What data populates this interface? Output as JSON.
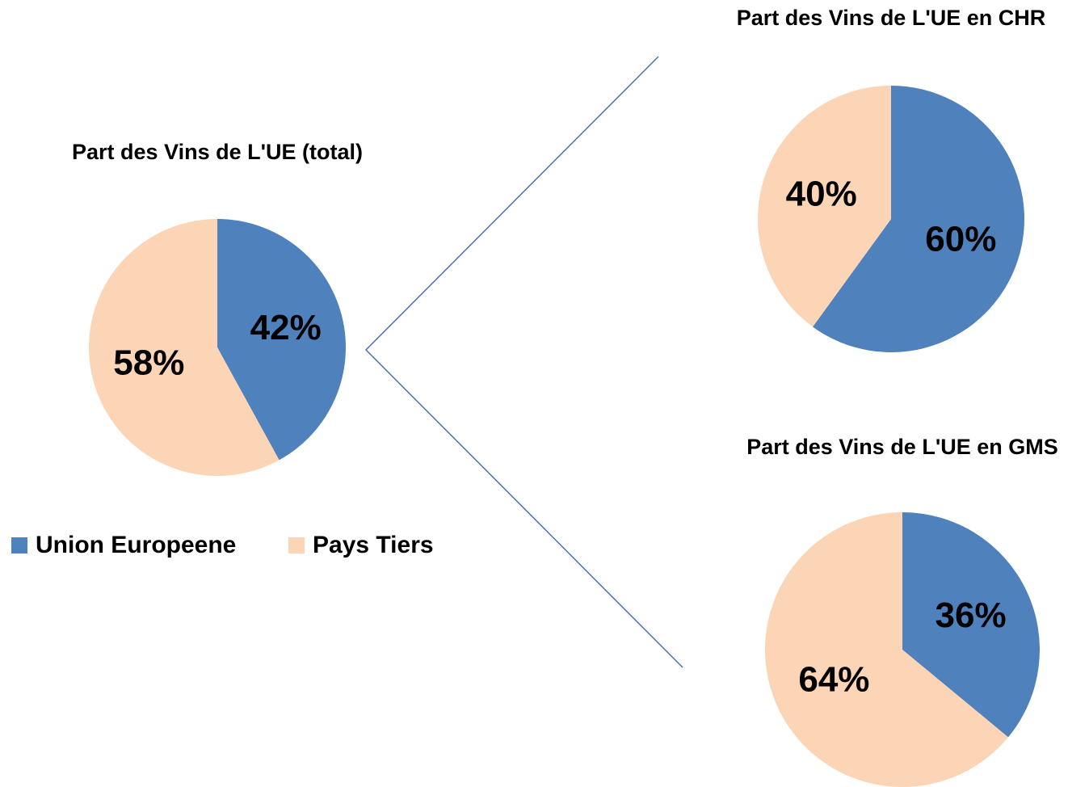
{
  "chart_data": [
    {
      "type": "pie",
      "title": "Part des Vins de L'UE (total)",
      "categories": [
        "Union Europeene",
        "Pays Tiers"
      ],
      "values": [
        42,
        58
      ],
      "value_labels": [
        "42%",
        "58%"
      ],
      "colors": [
        "#4f81bd",
        "#fbd5b5"
      ]
    },
    {
      "type": "pie",
      "title": "Part des Vins de L'UE en CHR",
      "values": [
        60,
        40
      ],
      "value_labels": [
        "60%",
        "40%"
      ],
      "colors": [
        "#4f81bd",
        "#fbd5b5"
      ]
    },
    {
      "type": "pie",
      "title": "Part des Vins de L'UE en GMS",
      "values": [
        36,
        64
      ],
      "value_labels": [
        "36%",
        "64%"
      ],
      "colors": [
        "#4f81bd",
        "#fbd5b5"
      ]
    }
  ]
}
